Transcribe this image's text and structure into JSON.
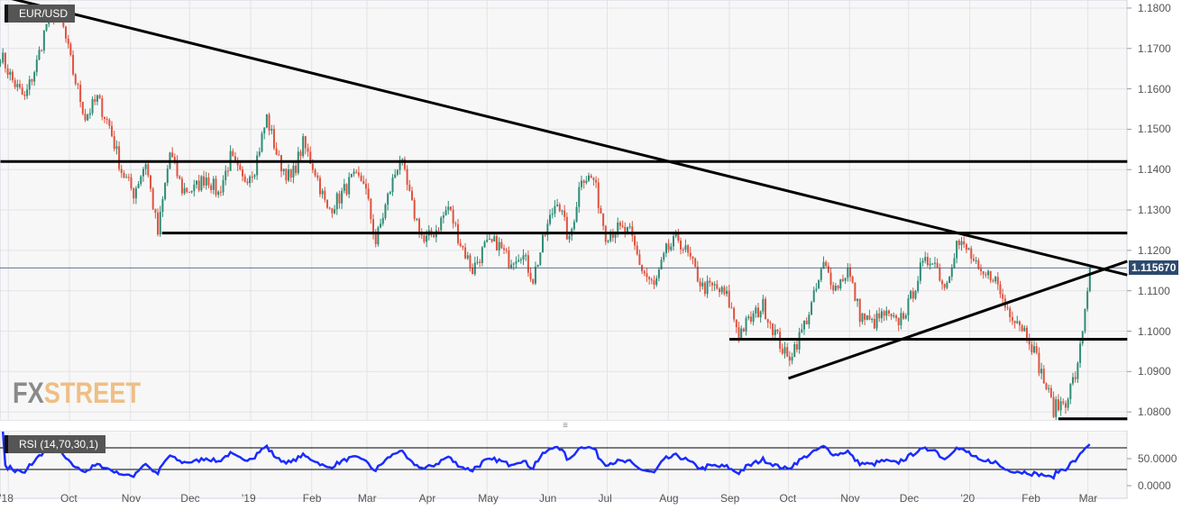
{
  "symbol": "EUR/USD",
  "indicator_label": "RSI (14,70,30,1)",
  "logo": {
    "part1": "FX",
    "part2": "STREET"
  },
  "colors": {
    "up": "#2f8c75",
    "down": "#e0533f",
    "rsi": "#1a2cff",
    "price_tag": "#2c4a6e",
    "panel_bg": "#f7f7f7",
    "grid": "#e3e3e8"
  },
  "chart_data": {
    "type": "candlestick",
    "series_start": "2018-08-27",
    "series_end": "2020-03-02",
    "closes": [
      1.1686,
      1.162,
      1.1575,
      1.1664,
      1.1786,
      1.1775,
      1.1641,
      1.153,
      1.1575,
      1.1508,
      1.1397,
      1.1342,
      1.142,
      1.1241,
      1.1442,
      1.1351,
      1.1351,
      1.1384,
      1.134,
      1.1429,
      1.1373,
      1.1406,
      1.1529,
      1.142,
      1.1375,
      1.1464,
      1.1397,
      1.1297,
      1.1331,
      1.1375,
      1.1375,
      1.1219,
      1.1331,
      1.1431,
      1.1308,
      1.1219,
      1.1252,
      1.1308,
      1.1219,
      1.1152,
      1.1208,
      1.1219,
      1.1175,
      1.1197,
      1.113,
      1.1241,
      1.1331,
      1.1219,
      1.1386,
      1.1375,
      1.1241,
      1.1252,
      1.1241,
      1.1152,
      1.1108,
      1.1197,
      1.123,
      1.1175,
      1.1108,
      1.1108,
      1.1085,
      1.0996,
      1.103,
      1.1063,
      1.0996,
      1.0929,
      1.0985,
      1.1063,
      1.1163,
      1.1108,
      1.1152,
      1.1041,
      1.1018,
      1.1041,
      1.1018,
      1.1063,
      1.1152,
      1.1186,
      1.1108,
      1.1219,
      1.1197,
      1.113,
      1.1141,
      1.1063,
      1.103,
      1.0985,
      1.0896,
      1.0807,
      1.0829,
      1.0907,
      1.1157
    ],
    "last_price": "1.115670",
    "y_ticks": [
      "1.1800",
      "1.1700",
      "1.1600",
      "1.1500",
      "1.1400",
      "1.1300",
      "1.1200",
      "1.1100",
      "1.1000",
      "1.0900",
      "1.0800"
    ],
    "ylim": [
      1.0778,
      1.182
    ],
    "x_ticks": [
      {
        "label": "'18",
        "date": "2018-08-31"
      },
      {
        "label": "Oct",
        "date": "2018-10-01"
      },
      {
        "label": "Nov",
        "date": "2018-11-01"
      },
      {
        "label": "Dec",
        "date": "2018-12-01"
      },
      {
        "label": "'19",
        "date": "2019-01-01"
      },
      {
        "label": "Feb",
        "date": "2019-02-01"
      },
      {
        "label": "Mar",
        "date": "2019-03-01"
      },
      {
        "label": "Apr",
        "date": "2019-04-01"
      },
      {
        "label": "May",
        "date": "2019-05-01"
      },
      {
        "label": "Jun",
        "date": "2019-06-01"
      },
      {
        "label": "Jul",
        "date": "2019-07-01"
      },
      {
        "label": "Aug",
        "date": "2019-08-01"
      },
      {
        "label": "Sep",
        "date": "2019-09-01"
      },
      {
        "label": "Oct",
        "date": "2019-10-01"
      },
      {
        "label": "Nov",
        "date": "2019-11-01"
      },
      {
        "label": "Dec",
        "date": "2019-12-01"
      },
      {
        "label": "'20",
        "date": "2020-01-01"
      },
      {
        "label": "Feb",
        "date": "2020-02-01"
      },
      {
        "label": "Mar",
        "date": "2020-03-01"
      }
    ],
    "trendlines": [
      {
        "from": [
          "2018-08-27",
          1.183
        ],
        "to": [
          "2020-03-21",
          1.1139
        ]
      },
      {
        "from": [
          "2019-10-01",
          1.0883
        ],
        "to": [
          "2020-03-21",
          1.1173
        ]
      },
      {
        "from": [
          "2018-08-27",
          1.142
        ],
        "to": [
          "2020-03-21",
          1.142
        ]
      },
      {
        "from": [
          "2018-11-17",
          1.1243
        ],
        "to": [
          "2020-03-21",
          1.1243
        ]
      },
      {
        "from": [
          "2019-09-01",
          1.098
        ],
        "to": [
          "2020-03-21",
          1.098
        ]
      },
      {
        "from": [
          "2020-02-15",
          1.0783
        ],
        "to": [
          "2020-03-21",
          1.0783
        ]
      }
    ],
    "rsi": {
      "period": 14,
      "upper": 70,
      "lower": 30,
      "y_ticks": [
        "50.0000",
        "0.0000"
      ],
      "ylim": [
        0,
        100
      ]
    }
  }
}
